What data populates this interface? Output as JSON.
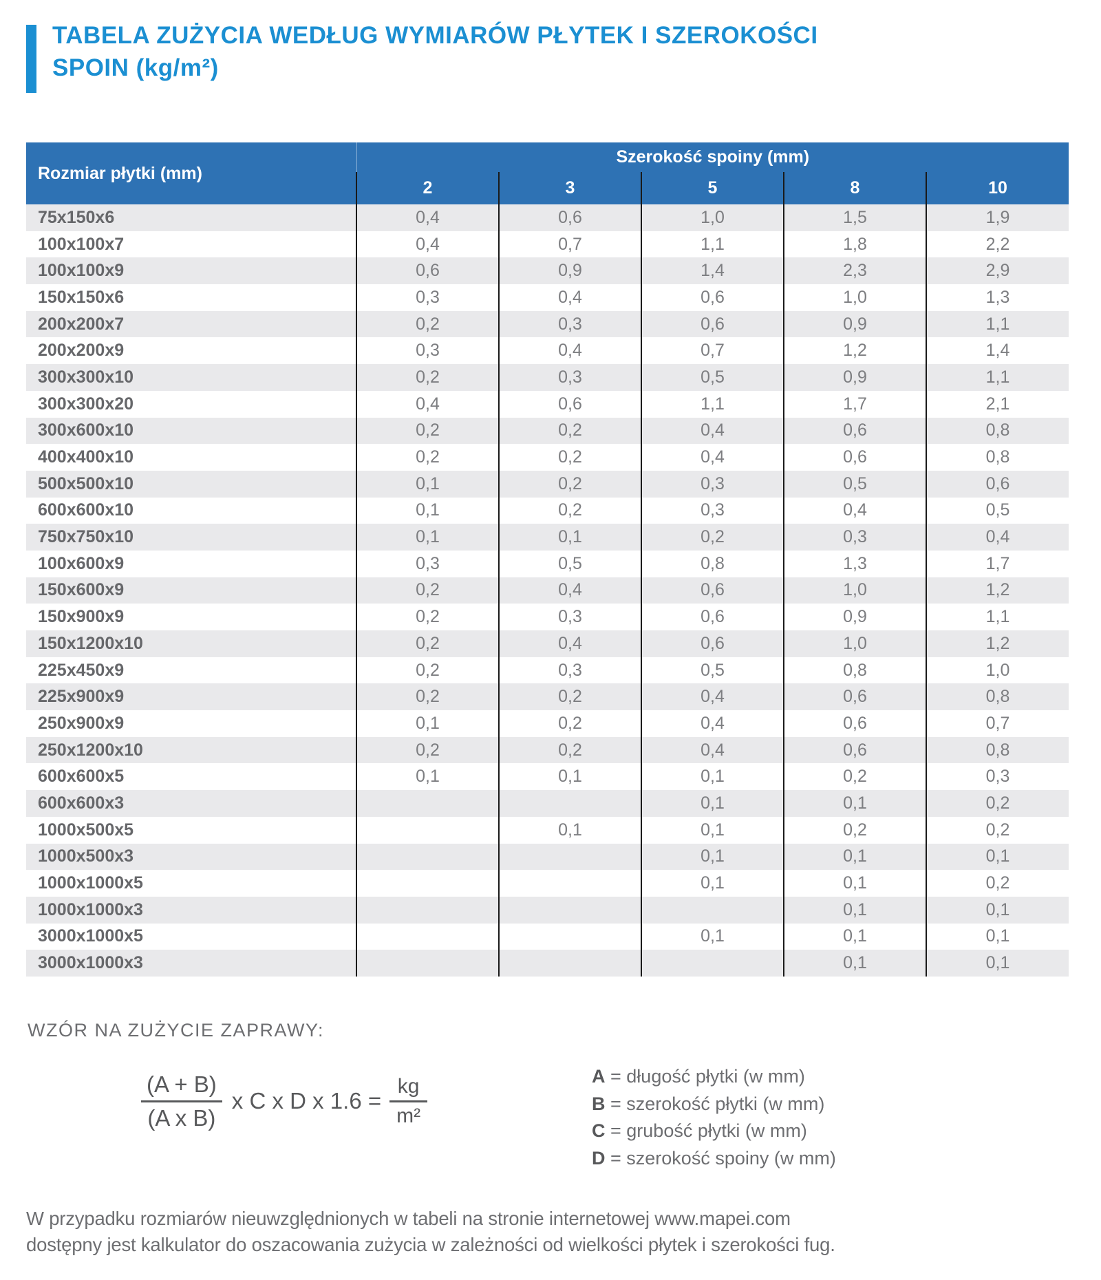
{
  "title": {
    "line1": "TABELA ZUŻYCIA WEDŁUG WYMIARÓW PŁYTEK I SZEROKOŚCI",
    "line2": "SPOIN (kg/m²)"
  },
  "table": {
    "row_header": "Rozmiar płytki (mm)",
    "col_group_header": "Szerokość spoiny (mm)",
    "joint_widths": [
      "2",
      "3",
      "5",
      "8",
      "10"
    ],
    "rows": [
      {
        "size": "75x150x6",
        "values": [
          "0,4",
          "0,6",
          "1,0",
          "1,5",
          "1,9"
        ]
      },
      {
        "size": "100x100x7",
        "values": [
          "0,4",
          "0,7",
          "1,1",
          "1,8",
          "2,2"
        ]
      },
      {
        "size": "100x100x9",
        "values": [
          "0,6",
          "0,9",
          "1,4",
          "2,3",
          "2,9"
        ]
      },
      {
        "size": "150x150x6",
        "values": [
          "0,3",
          "0,4",
          "0,6",
          "1,0",
          "1,3"
        ]
      },
      {
        "size": "200x200x7",
        "values": [
          "0,2",
          "0,3",
          "0,6",
          "0,9",
          "1,1"
        ]
      },
      {
        "size": "200x200x9",
        "values": [
          "0,3",
          "0,4",
          "0,7",
          "1,2",
          "1,4"
        ]
      },
      {
        "size": "300x300x10",
        "values": [
          "0,2",
          "0,3",
          "0,5",
          "0,9",
          "1,1"
        ]
      },
      {
        "size": "300x300x20",
        "values": [
          "0,4",
          "0,6",
          "1,1",
          "1,7",
          "2,1"
        ]
      },
      {
        "size": "300x600x10",
        "values": [
          "0,2",
          "0,2",
          "0,4",
          "0,6",
          "0,8"
        ]
      },
      {
        "size": "400x400x10",
        "values": [
          "0,2",
          "0,2",
          "0,4",
          "0,6",
          "0,8"
        ]
      },
      {
        "size": "500x500x10",
        "values": [
          "0,1",
          "0,2",
          "0,3",
          "0,5",
          "0,6"
        ]
      },
      {
        "size": "600x600x10",
        "values": [
          "0,1",
          "0,2",
          "0,3",
          "0,4",
          "0,5"
        ]
      },
      {
        "size": "750x750x10",
        "values": [
          "0,1",
          "0,1",
          "0,2",
          "0,3",
          "0,4"
        ]
      },
      {
        "size": "100x600x9",
        "values": [
          "0,3",
          "0,5",
          "0,8",
          "1,3",
          "1,7"
        ]
      },
      {
        "size": "150x600x9",
        "values": [
          "0,2",
          "0,4",
          "0,6",
          "1,0",
          "1,2"
        ]
      },
      {
        "size": "150x900x9",
        "values": [
          "0,2",
          "0,3",
          "0,6",
          "0,9",
          "1,1"
        ]
      },
      {
        "size": "150x1200x10",
        "values": [
          "0,2",
          "0,4",
          "0,6",
          "1,0",
          "1,2"
        ]
      },
      {
        "size": "225x450x9",
        "values": [
          "0,2",
          "0,3",
          "0,5",
          "0,8",
          "1,0"
        ]
      },
      {
        "size": "225x900x9",
        "values": [
          "0,2",
          "0,2",
          "0,4",
          "0,6",
          "0,8"
        ]
      },
      {
        "size": "250x900x9",
        "values": [
          "0,1",
          "0,2",
          "0,4",
          "0,6",
          "0,7"
        ]
      },
      {
        "size": "250x1200x10",
        "values": [
          "0,2",
          "0,2",
          "0,4",
          "0,6",
          "0,8"
        ]
      },
      {
        "size": "600x600x5",
        "values": [
          "0,1",
          "0,1",
          "0,1",
          "0,2",
          "0,3"
        ]
      },
      {
        "size": "600x600x3",
        "values": [
          "",
          "",
          "0,1",
          "0,1",
          "0,2"
        ]
      },
      {
        "size": "1000x500x5",
        "values": [
          "",
          "0,1",
          "0,1",
          "0,2",
          "0,2"
        ]
      },
      {
        "size": "1000x500x3",
        "values": [
          "",
          "",
          "0,1",
          "0,1",
          "0,1"
        ]
      },
      {
        "size": "1000x1000x5",
        "values": [
          "",
          "",
          "0,1",
          "0,1",
          "0,2"
        ]
      },
      {
        "size": "1000x1000x3",
        "values": [
          "",
          "",
          "",
          "0,1",
          "0,1"
        ]
      },
      {
        "size": "3000x1000x5",
        "values": [
          "",
          "",
          "0,1",
          "0,1",
          "0,1"
        ]
      },
      {
        "size": "3000x1000x3",
        "values": [
          "",
          "",
          "",
          "0,1",
          "0,1"
        ]
      }
    ]
  },
  "formula": {
    "heading": "WZÓR NA ZUŻYCIE ZAPRAWY:",
    "numerator": "(A + B)",
    "denominator": "(A x B)",
    "middle": "x C x D x 1.6 =",
    "result_numerator": "kg",
    "result_denominator": "m²",
    "legend": [
      {
        "symbol": "A",
        "description": "= długość płytki (w mm)"
      },
      {
        "symbol": "B",
        "description": "= szerokość płytki (w mm)"
      },
      {
        "symbol": "C",
        "description": "= grubość płytki (w mm)"
      },
      {
        "symbol": "D",
        "description": "= szerokość spoiny (w mm)"
      }
    ]
  },
  "footer": {
    "line1": "W przypadku rozmiarów nieuwzględnionych w tabeli na stronie internetowej www.mapei.com",
    "line2": "dostępny jest kalkulator do oszacowania zużycia w zależności od wielkości płytek i szerokości fug."
  },
  "colors": {
    "accent_blue": "#1b8fd2",
    "header_blue": "#2e72b4",
    "stripe_gray": "#e9e9eb",
    "text_gray": "#6d6e71",
    "divider_black": "#1a1a1a"
  }
}
